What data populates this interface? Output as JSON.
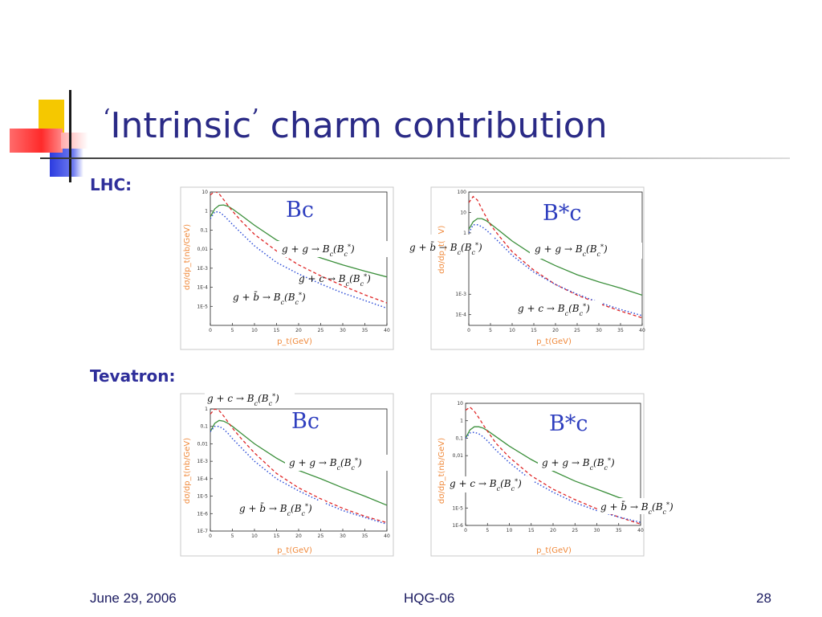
{
  "slide": {
    "title_open_quote": "‘",
    "title_word": "Intrinsic",
    "title_close_quote": "’",
    "title_rest": " charm contribution",
    "section_lhc": "LHC:",
    "section_tevatron": "Tevatron:",
    "footer_date": "June 29, 2006",
    "footer_center": "HQG-06",
    "footer_page": "28"
  },
  "colors": {
    "title": "#2a2a86",
    "gg_curve": "#3b8f3b",
    "gc_curve": "#e02828",
    "gb_curve": "#3050d8",
    "axis_label": "#f08a3c",
    "deco_yellow": "#f5c800",
    "deco_red": "#ff4a4a",
    "deco_blue": "#2b3be0"
  },
  "chart_data": [
    {
      "id": "lhc-bc",
      "type": "line",
      "scale_y": "log",
      "label": "Bc",
      "xlabel": "p_t(GeV)",
      "ylabel": "dσ/dp_t(nb/GeV)",
      "xlim": [
        0,
        40
      ],
      "ylim": [
        1e-06,
        10
      ],
      "x_ticks": [
        0,
        5,
        10,
        15,
        20,
        25,
        30,
        35,
        40
      ],
      "y_ticks": [
        {
          "v": 10,
          "label": "10"
        },
        {
          "v": 1,
          "label": "1"
        },
        {
          "v": 0.1,
          "label": "0,1"
        },
        {
          "v": 0.01,
          "label": "0,01"
        },
        {
          "v": 0.001,
          "label": "1E-3"
        },
        {
          "v": 0.0001,
          "label": "1E-4"
        },
        {
          "v": 1e-05,
          "label": "1E-5"
        }
      ],
      "series": [
        {
          "key": "gg",
          "x": [
            0,
            1,
            2,
            3,
            4,
            5,
            7,
            10,
            15,
            20,
            25,
            30,
            35,
            40
          ],
          "values": [
            0.5,
            1.3,
            2.0,
            2.1,
            1.8,
            1.3,
            0.6,
            0.18,
            0.03,
            0.009,
            0.0035,
            0.0015,
            0.0007,
            0.00035
          ]
        },
        {
          "key": "gc",
          "x": [
            0,
            1,
            2,
            3,
            4,
            5,
            7,
            10,
            15,
            20,
            25,
            30,
            35,
            40
          ],
          "values": [
            7,
            11,
            8,
            4,
            2.0,
            1.0,
            0.3,
            0.06,
            0.008,
            0.0015,
            0.0004,
            0.00012,
            4e-05,
            1.5e-05
          ]
        },
        {
          "key": "gb",
          "x": [
            0,
            1,
            2,
            3,
            4,
            5,
            7,
            10,
            15,
            20,
            25,
            30,
            35,
            40
          ],
          "values": [
            0.4,
            0.9,
            0.9,
            0.6,
            0.35,
            0.2,
            0.07,
            0.015,
            0.002,
            0.0005,
            0.00015,
            5e-05,
            2e-05,
            8e-06
          ]
        }
      ],
      "annotations": [
        {
          "key": "gg",
          "text": "g + g → B_c(B_c^*)"
        },
        {
          "key": "gc",
          "text": "g + c → B_c(B_c^*)"
        },
        {
          "key": "gb",
          "text": "g + b̄ → B_c(B_c^*)"
        }
      ]
    },
    {
      "id": "lhc-bstarc",
      "type": "line",
      "scale_y": "log",
      "label": "B*c",
      "xlabel": "p_t(GeV)",
      "ylabel": "dσ/dp_t(",
      "ylabel_tail": "V)",
      "xlim": [
        0,
        40
      ],
      "ylim": [
        3e-05,
        100
      ],
      "x_ticks": [
        0,
        5,
        10,
        15,
        20,
        25,
        30,
        35,
        40
      ],
      "y_ticks": [
        {
          "v": 100,
          "label": "100"
        },
        {
          "v": 10,
          "label": "10"
        },
        {
          "v": 1,
          "label": "1"
        },
        {
          "v": 0.001,
          "label": "1E-3"
        },
        {
          "v": 0.0001,
          "label": "1E-4"
        }
      ],
      "series": [
        {
          "key": "gg",
          "x": [
            0,
            1,
            2,
            3,
            4,
            5,
            7,
            10,
            15,
            20,
            25,
            30,
            35,
            40
          ],
          "values": [
            1.5,
            3.5,
            5.0,
            5.0,
            4.0,
            2.8,
            1.3,
            0.4,
            0.08,
            0.025,
            0.009,
            0.004,
            0.002,
            0.0009
          ]
        },
        {
          "key": "gc",
          "x": [
            0,
            1,
            2,
            3,
            4,
            5,
            7,
            10,
            15,
            20,
            25,
            30,
            35,
            40
          ],
          "values": [
            30,
            60,
            40,
            15,
            6,
            2.5,
            0.7,
            0.12,
            0.015,
            0.003,
            0.0009,
            0.00035,
            0.00015,
            7e-05
          ]
        },
        {
          "key": "gb",
          "x": [
            0,
            1,
            2,
            3,
            4,
            5,
            7,
            10,
            15,
            20,
            25,
            30,
            35,
            40
          ],
          "values": [
            1,
            2.5,
            2.5,
            2.0,
            1.4,
            0.9,
            0.35,
            0.08,
            0.012,
            0.003,
            0.001,
            0.0004,
            0.00018,
            9e-05
          ]
        }
      ],
      "annotations": [
        {
          "key": "gb",
          "text": "g + b̄ → B_c(B_c^*)"
        },
        {
          "key": "gg",
          "text": "g + g → B_c(B_c^*)"
        },
        {
          "key": "gc",
          "text": "g + c → B_c(B_c^*)"
        }
      ]
    },
    {
      "id": "tev-bc",
      "type": "line",
      "scale_y": "log",
      "label": "Bc",
      "xlabel": "p_t(GeV)",
      "ylabel": "dσ/dp_t(nb/GeV)",
      "xlim": [
        0,
        40
      ],
      "ylim": [
        1e-07,
        1
      ],
      "x_ticks": [
        0,
        5,
        10,
        15,
        20,
        25,
        30,
        35,
        40
      ],
      "y_ticks": [
        {
          "v": 1,
          "label": "1"
        },
        {
          "v": 0.1,
          "label": "0,1"
        },
        {
          "v": 0.01,
          "label": "0,01"
        },
        {
          "v": 0.001,
          "label": "1E-3"
        },
        {
          "v": 0.0001,
          "label": "1E-4"
        },
        {
          "v": 1e-05,
          "label": "1E-5"
        },
        {
          "v": 1e-06,
          "label": "1E-6"
        },
        {
          "v": 1e-07,
          "label": "1E-7"
        }
      ],
      "series": [
        {
          "key": "gg",
          "x": [
            0,
            1,
            2,
            3,
            4,
            5,
            7,
            10,
            15,
            20,
            25,
            30,
            35,
            40
          ],
          "values": [
            0.05,
            0.15,
            0.22,
            0.2,
            0.15,
            0.1,
            0.04,
            0.01,
            0.0015,
            0.0003,
            0.0001,
            3e-05,
            1e-05,
            3e-06
          ]
        },
        {
          "key": "gc",
          "x": [
            0,
            1,
            2,
            3,
            4,
            5,
            7,
            10,
            15,
            20,
            25,
            30,
            35,
            40
          ],
          "values": [
            0.5,
            1.0,
            0.8,
            0.4,
            0.18,
            0.08,
            0.02,
            0.003,
            0.0002,
            3e-05,
            7e-06,
            2e-06,
            7e-07,
            3e-07
          ]
        },
        {
          "key": "gb",
          "x": [
            0,
            1,
            2,
            3,
            4,
            5,
            7,
            10,
            15,
            20,
            25,
            30,
            35,
            40
          ],
          "values": [
            0.05,
            0.1,
            0.1,
            0.07,
            0.04,
            0.02,
            0.006,
            0.001,
            0.0001,
            2e-05,
            5e-06,
            1.5e-06,
            6e-07,
            2.5e-07
          ]
        }
      ],
      "annotations": [
        {
          "key": "gc",
          "text": "g + c → B_c(B_c^*)"
        },
        {
          "key": "gg",
          "text": "g + g → B_c(B_c^*)"
        },
        {
          "key": "gb",
          "text": "g + b̄ → B_c(B_c^*)"
        }
      ]
    },
    {
      "id": "tev-bstarc",
      "type": "line",
      "scale_y": "log",
      "label": "B*c",
      "xlabel": "p_t(GeV)",
      "ylabel": "dσ/dp_t(nb/GeV)",
      "xlim": [
        0,
        40
      ],
      "ylim": [
        1e-06,
        10
      ],
      "x_ticks": [
        0,
        5,
        10,
        15,
        20,
        25,
        30,
        35,
        40
      ],
      "y_ticks": [
        {
          "v": 10,
          "label": "10"
        },
        {
          "v": 1,
          "label": "1"
        },
        {
          "v": 0.1,
          "label": "0,1"
        },
        {
          "v": 0.01,
          "label": "0,01"
        },
        {
          "v": 1e-05,
          "label": "1E-5"
        },
        {
          "v": 1e-06,
          "label": "1E-6"
        }
      ],
      "series": [
        {
          "key": "gg",
          "x": [
            0,
            1,
            2,
            3,
            4,
            5,
            7,
            10,
            15,
            20,
            25,
            30,
            35,
            40
          ],
          "values": [
            0.1,
            0.3,
            0.45,
            0.45,
            0.38,
            0.27,
            0.12,
            0.035,
            0.006,
            0.0013,
            0.00035,
            0.00012,
            4e-05,
            2e-05
          ]
        },
        {
          "key": "gc",
          "x": [
            0,
            1,
            2,
            3,
            4,
            5,
            7,
            10,
            15,
            20,
            25,
            30,
            35,
            40
          ],
          "values": [
            4,
            6,
            3.5,
            1.5,
            0.6,
            0.25,
            0.05,
            0.008,
            0.0007,
            0.00012,
            3e-05,
            9e-06,
            3e-06,
            1.2e-06
          ]
        },
        {
          "key": "gb",
          "x": [
            0,
            1,
            2,
            3,
            4,
            5,
            7,
            10,
            15,
            20,
            25,
            30,
            35,
            40
          ],
          "values": [
            0.1,
            0.2,
            0.22,
            0.18,
            0.12,
            0.07,
            0.02,
            0.004,
            0.0004,
            8e-05,
            2e-05,
            7e-06,
            3e-06,
            1.5e-06
          ]
        }
      ],
      "annotations": [
        {
          "key": "gg",
          "text": "g + g → B_c(B_c^*)"
        },
        {
          "key": "gc",
          "text": "g + c → B_c(B_c^*)"
        },
        {
          "key": "gb",
          "text": "g + b̄ → B_c(B_c^*)"
        }
      ]
    }
  ]
}
